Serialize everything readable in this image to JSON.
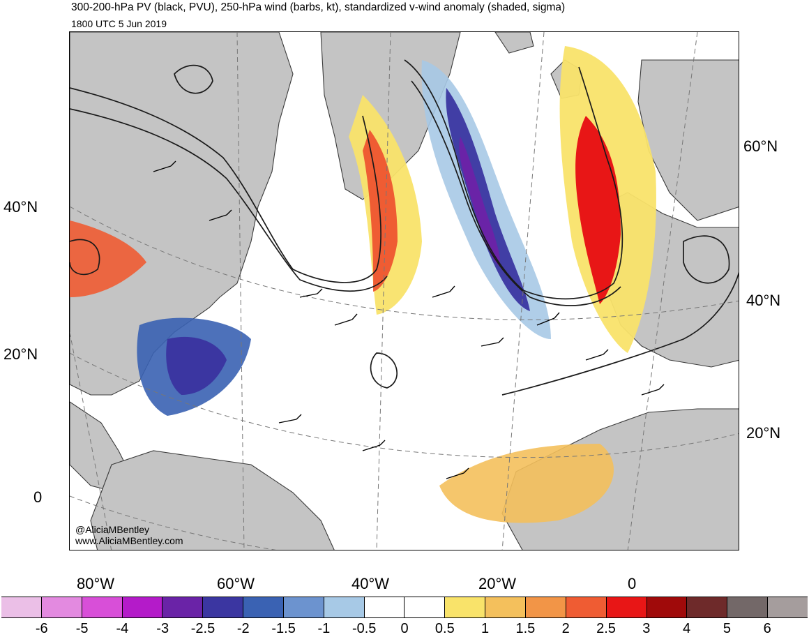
{
  "header": {
    "title": "300-200-hPa PV (black, PVU), 250-hPa wind (barbs, kt), standardized v-wind anomaly (shaded, sigma)",
    "subtitle": "1800 UTC 5 Jun 2019"
  },
  "map": {
    "projection": "polar stereographic",
    "lat_labels_left": [
      "40°N",
      "20°N",
      "0"
    ],
    "lat_labels_right": [
      "60°N",
      "40°N",
      "20°N"
    ],
    "lon_labels": [
      "80°W",
      "60°W",
      "40°W",
      "20°W",
      "0"
    ],
    "credit_handle": "@AliciaMBentley",
    "credit_url": "www.AliciaMBentley.com",
    "land_color": "#c4c4c4",
    "coast_color": "#3a3a3a",
    "contour_color": "#1a1a1a"
  },
  "colorbar": {
    "labels": [
      "-6",
      "-5",
      "-4",
      "-3",
      "-2.5",
      "-2",
      "-1.5",
      "-1",
      "-0.5",
      "0",
      "0.5",
      "1",
      "1.5",
      "2",
      "2.5",
      "3",
      "4",
      "5",
      "6"
    ],
    "colors": [
      "#ebbfe7",
      "#e38ae0",
      "#d84fd8",
      "#b41bc9",
      "#6a23a7",
      "#3b36a1",
      "#3a62b3",
      "#6c93cf",
      "#a7c9e6",
      "#ffffff",
      "#ffffff",
      "#f9e36a",
      "#f4c05c",
      "#f29547",
      "#ef5c33",
      "#e81616",
      "#a00a0a",
      "#6e2a2a",
      "#736868",
      "#a59d9d"
    ]
  }
}
